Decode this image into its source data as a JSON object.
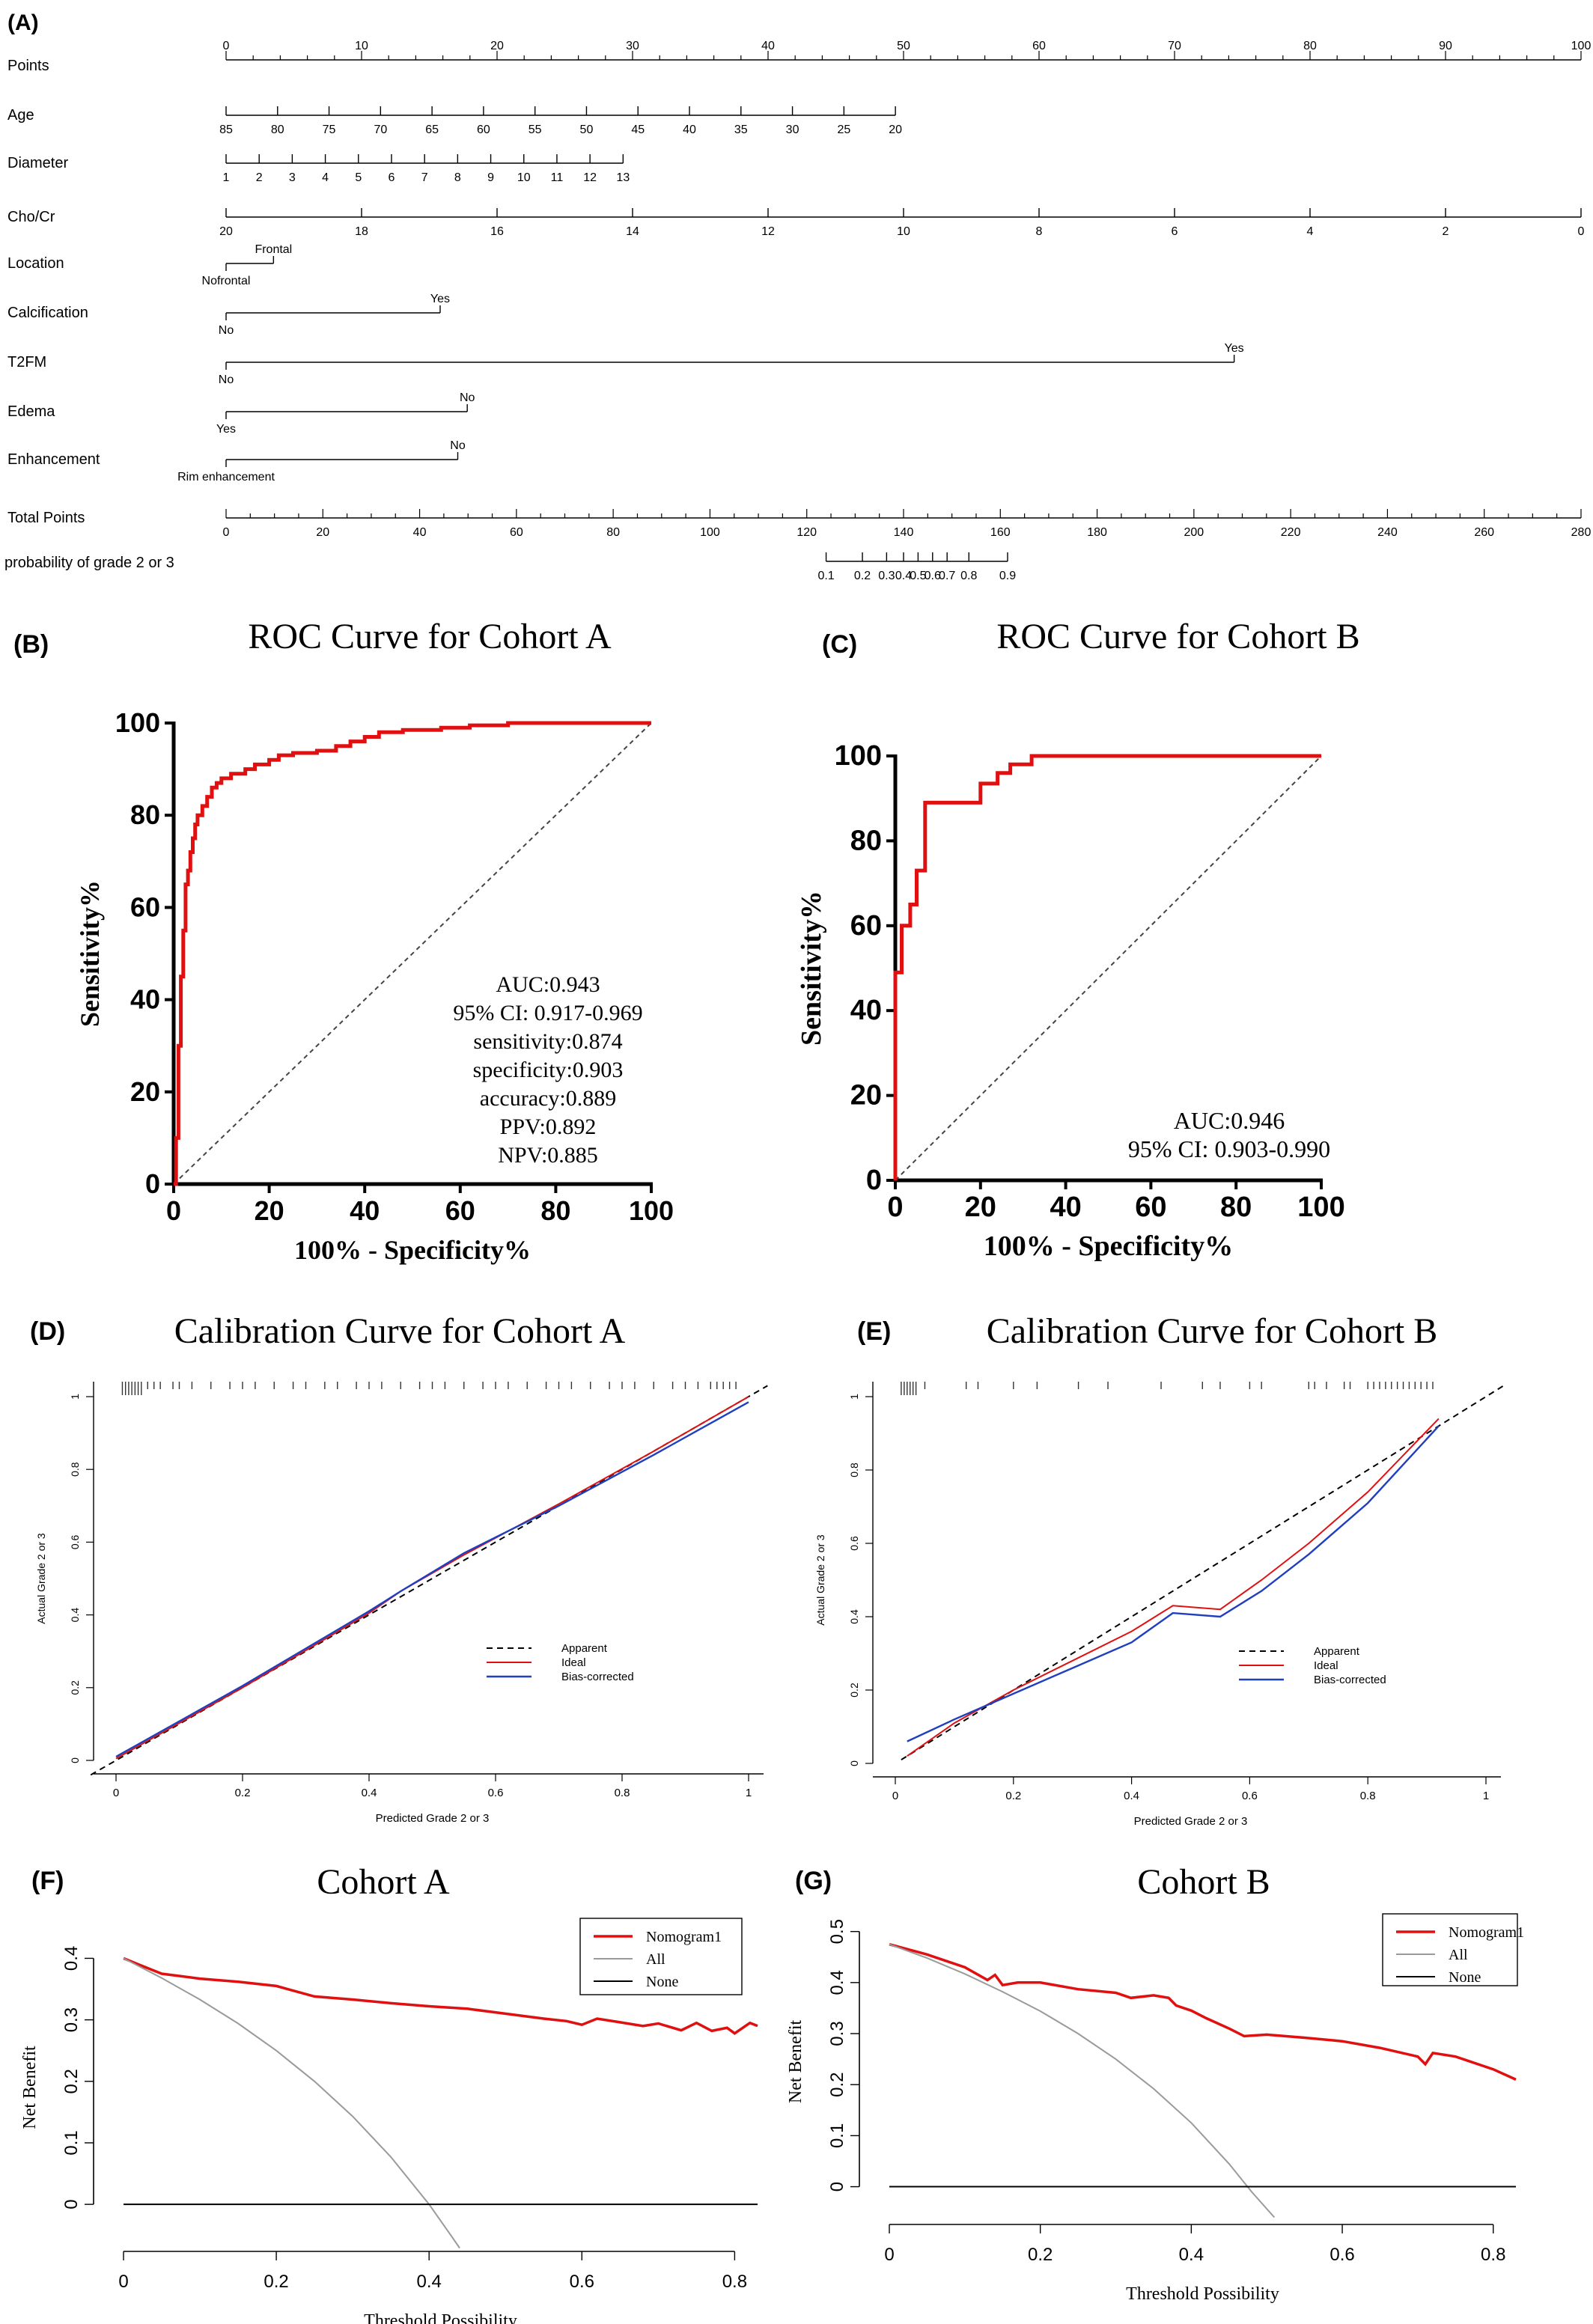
{
  "colors": {
    "model_red": "#e01010",
    "bias_blue": "#1f3fbf",
    "all_gray": "#9a9a9a",
    "axis_black": "#000000"
  },
  "panels": {
    "A": {
      "letter": "(A)",
      "rows": [
        {
          "label": "Points",
          "ticks": [
            "0",
            "10",
            "20",
            "30",
            "40",
            "50",
            "60",
            "70",
            "80",
            "90",
            "100"
          ]
        },
        {
          "label": "Age",
          "ticks": [
            "85",
            "80",
            "75",
            "70",
            "65",
            "60",
            "55",
            "50",
            "45",
            "40",
            "35",
            "30",
            "25",
            "20"
          ]
        },
        {
          "label": "Diameter",
          "ticks": [
            "1",
            "2",
            "3",
            "4",
            "5",
            "6",
            "7",
            "8",
            "9",
            "10",
            "11",
            "12",
            "13"
          ]
        },
        {
          "label": "Cho/Cr",
          "ticks": [
            "20",
            "18",
            "16",
            "14",
            "12",
            "10",
            "8",
            "6",
            "4",
            "2",
            "0"
          ]
        },
        {
          "label": "Location",
          "values": [
            "Nofrontal",
            "Frontal"
          ]
        },
        {
          "label": "Calcification",
          "values": [
            "No",
            "Yes"
          ]
        },
        {
          "label": "T2FM",
          "values": [
            "No",
            "Yes"
          ]
        },
        {
          "label": "Edema",
          "values": [
            "Yes",
            "No"
          ]
        },
        {
          "label": "Enhancement",
          "values": [
            "Rim enhancement",
            "No"
          ]
        },
        {
          "label": "Total Points",
          "ticks": [
            "0",
            "20",
            "40",
            "60",
            "80",
            "100",
            "120",
            "140",
            "160",
            "180",
            "200",
            "220",
            "240",
            "260",
            "280"
          ]
        },
        {
          "label": "probability of grade 2 or 3",
          "ticks": [
            "0.1",
            "0.2",
            "0.3",
            "0.4",
            "0.5",
            "0.6",
            "0.7",
            "0.8",
            "0.9"
          ]
        }
      ]
    },
    "B": {
      "letter": "(B)",
      "title": "ROC Curve for Cohort A",
      "xlabel": "100% - Specificity%",
      "ylabel": "Sensitivity%",
      "stats": [
        "AUC:0.943",
        "95% CI: 0.917-0.969",
        "sensitivity:0.874",
        "specificity:0.903",
        "accuracy:0.889",
        "PPV:0.892",
        "NPV:0.885"
      ]
    },
    "C": {
      "letter": "(C)",
      "title": "ROC Curve for Cohort B",
      "xlabel": "100% - Specificity%",
      "ylabel": "Sensitivity%",
      "stats": [
        "AUC:0.946",
        "95% CI: 0.903-0.990"
      ]
    },
    "D": {
      "letter": "(D)",
      "title": "Calibration Curve for Cohort A",
      "xlabel": "Predicted Grade 2 or 3",
      "ylabel": "Actual Grade 2 or 3",
      "legend": [
        "Apparent",
        "Ideal",
        "Bias-corrected"
      ]
    },
    "E": {
      "letter": "(E)",
      "title": "Calibration Curve for Cohort B",
      "xlabel": "Predicted Grade 2 or 3",
      "ylabel": "Actual Grade 2 or 3",
      "legend": [
        "Apparent",
        "Ideal",
        "Bias-corrected"
      ]
    },
    "F": {
      "letter": "(F)",
      "title": "Cohort A",
      "xlabel": "Threshold Possibility",
      "ylabel": "Net Benefit",
      "legend": [
        "Nomogram1",
        "All",
        "None"
      ]
    },
    "G": {
      "letter": "(G)",
      "title": "Cohort B",
      "xlabel": "Threshold Possibility",
      "ylabel": "Net Benefit",
      "legend": [
        "Nomogram1",
        "All",
        "None"
      ]
    }
  },
  "chart_data": [
    {
      "type": "line",
      "id": "B",
      "title": "ROC Curve for Cohort A",
      "xlabel": "100% - Specificity%",
      "ylabel": "Sensitivity%",
      "xlim": [
        0,
        100
      ],
      "ylim": [
        0,
        100
      ],
      "xticks": [
        0,
        20,
        40,
        60,
        80,
        100
      ],
      "yticks": [
        0,
        20,
        40,
        60,
        80,
        100
      ],
      "series": [
        {
          "style": "roc",
          "x": [
            0,
            0.5,
            0.5,
            1,
            1,
            1.5,
            1.5,
            2,
            2,
            2.5,
            2.5,
            3,
            3,
            3.5,
            3.5,
            4,
            4,
            4.5,
            4.5,
            5,
            5,
            6,
            6,
            7,
            7,
            8,
            8,
            9,
            9,
            10,
            10,
            12,
            12,
            15,
            15,
            17,
            17,
            20,
            20,
            22,
            22,
            25,
            25,
            30,
            30,
            34,
            34,
            37,
            37,
            40,
            40,
            43,
            43,
            48,
            48,
            56,
            56,
            62,
            62,
            70,
            70,
            100
          ],
          "y": [
            0,
            0,
            10,
            10,
            30,
            30,
            45,
            45,
            55,
            55,
            65,
            65,
            68,
            68,
            72,
            72,
            75,
            75,
            78,
            78,
            80,
            80,
            82,
            82,
            84,
            84,
            86,
            86,
            87,
            87,
            88,
            88,
            89,
            89,
            90,
            90,
            91,
            91,
            92,
            92,
            93,
            93,
            93.5,
            93.5,
            94,
            94,
            95,
            95,
            96,
            96,
            97,
            97,
            98,
            98,
            98.5,
            98.5,
            99,
            99,
            99.5,
            99.5,
            100,
            100
          ]
        },
        {
          "style": "diagonal",
          "x": [
            0,
            100
          ],
          "y": [
            0,
            100
          ]
        }
      ]
    },
    {
      "type": "line",
      "id": "C",
      "title": "ROC Curve for Cohort B",
      "xlabel": "100% - Specificity%",
      "ylabel": "Sensitivity%",
      "xlim": [
        0,
        100
      ],
      "ylim": [
        0,
        100
      ],
      "xticks": [
        0,
        20,
        40,
        60,
        80,
        100
      ],
      "yticks": [
        0,
        20,
        40,
        60,
        80,
        100
      ],
      "series": [
        {
          "style": "roc",
          "x": [
            0,
            0,
            1.5,
            1.5,
            3.5,
            3.5,
            5,
            5,
            7,
            7,
            10,
            10,
            20,
            20,
            24,
            24,
            27,
            27,
            32,
            32,
            100
          ],
          "y": [
            0,
            49,
            49,
            60,
            60,
            65,
            65,
            73,
            73,
            89,
            89,
            89,
            89,
            93.5,
            93.5,
            96,
            96,
            98,
            98,
            100,
            100
          ]
        },
        {
          "style": "diagonal",
          "x": [
            0,
            100
          ],
          "y": [
            0,
            100
          ]
        }
      ]
    },
    {
      "type": "line",
      "id": "D",
      "title": "Calibration Curve for Cohort A",
      "xlabel": "Predicted Grade 2 or 3",
      "ylabel": "Actual Grade 2 or 3",
      "xlim": [
        0,
        1
      ],
      "ylim": [
        0,
        1
      ],
      "xticks": [
        0,
        0.2,
        0.4,
        0.6,
        0.8,
        1.0
      ],
      "yticks": [
        0,
        0.2,
        0.4,
        0.6,
        0.8,
        1.0
      ],
      "series": [
        {
          "name": "Apparent",
          "style": "dashed",
          "x": [
            -0.04,
            1.03
          ],
          "y": [
            -0.04,
            1.03
          ]
        },
        {
          "name": "Ideal",
          "style": "red",
          "x": [
            0,
            0.2,
            0.4,
            0.45,
            0.55,
            0.7,
            0.85,
            1.0
          ],
          "y": [
            0.005,
            0.2,
            0.405,
            0.465,
            0.565,
            0.705,
            0.85,
            1.0
          ]
        },
        {
          "name": "Bias-corrected",
          "style": "blue",
          "x": [
            0,
            0.2,
            0.4,
            0.45,
            0.55,
            0.7,
            0.85,
            1.0
          ],
          "y": [
            0.01,
            0.205,
            0.41,
            0.465,
            0.57,
            0.7,
            0.84,
            0.985
          ]
        }
      ],
      "rug": [
        0.01,
        0.015,
        0.02,
        0.025,
        0.03,
        0.035,
        0.04,
        0.05,
        0.06,
        0.07,
        0.09,
        0.1,
        0.12,
        0.15,
        0.18,
        0.2,
        0.22,
        0.25,
        0.28,
        0.3,
        0.33,
        0.35,
        0.38,
        0.4,
        0.42,
        0.45,
        0.48,
        0.5,
        0.52,
        0.55,
        0.58,
        0.6,
        0.62,
        0.65,
        0.68,
        0.7,
        0.72,
        0.75,
        0.78,
        0.8,
        0.82,
        0.85,
        0.88,
        0.9,
        0.92,
        0.94,
        0.95,
        0.96,
        0.97,
        0.98
      ]
    },
    {
      "type": "line",
      "id": "E",
      "title": "Calibration Curve for Cohort B",
      "xlabel": "Predicted Grade 2 or 3",
      "ylabel": "Actual Grade 2 or 3",
      "xlim": [
        0,
        1
      ],
      "ylim": [
        0,
        1
      ],
      "xticks": [
        0,
        0.2,
        0.4,
        0.6,
        0.8,
        1.0
      ],
      "yticks": [
        0,
        0.2,
        0.4,
        0.6,
        0.8,
        1.0
      ],
      "series": [
        {
          "name": "Apparent",
          "style": "dashed",
          "x": [
            0.01,
            1.03
          ],
          "y": [
            0.01,
            1.03
          ]
        },
        {
          "name": "Ideal",
          "style": "red",
          "x": [
            0.02,
            0.1,
            0.2,
            0.3,
            0.4,
            0.47,
            0.55,
            0.62,
            0.7,
            0.8,
            0.92
          ],
          "y": [
            0.02,
            0.11,
            0.2,
            0.28,
            0.36,
            0.43,
            0.42,
            0.5,
            0.6,
            0.74,
            0.94
          ]
        },
        {
          "name": "Bias-corrected",
          "style": "blue",
          "x": [
            0.02,
            0.1,
            0.2,
            0.3,
            0.4,
            0.47,
            0.55,
            0.62,
            0.7,
            0.8,
            0.92
          ],
          "y": [
            0.06,
            0.12,
            0.19,
            0.26,
            0.33,
            0.41,
            0.4,
            0.47,
            0.57,
            0.71,
            0.92
          ]
        }
      ],
      "rug": [
        0.01,
        0.015,
        0.02,
        0.025,
        0.03,
        0.035,
        0.05,
        0.12,
        0.14,
        0.2,
        0.24,
        0.31,
        0.36,
        0.45,
        0.52,
        0.55,
        0.6,
        0.62,
        0.7,
        0.71,
        0.73,
        0.76,
        0.77,
        0.8,
        0.81,
        0.82,
        0.83,
        0.84,
        0.85,
        0.86,
        0.87,
        0.88,
        0.89,
        0.9,
        0.91
      ]
    },
    {
      "type": "line",
      "id": "F",
      "title": "Cohort A",
      "xlabel": "Threshold Possibility",
      "ylabel": "Net Benefit",
      "xlim": [
        0,
        0.83
      ],
      "ylim": [
        -0.04,
        0.42
      ],
      "xticks": [
        0,
        0.2,
        0.4,
        0.6,
        0.8
      ],
      "yticks": [
        0,
        0.1,
        0.2,
        0.3,
        0.4
      ],
      "series": [
        {
          "name": "Nomogram1",
          "style": "red",
          "x": [
            0,
            0.02,
            0.05,
            0.1,
            0.15,
            0.2,
            0.25,
            0.3,
            0.35,
            0.4,
            0.45,
            0.5,
            0.55,
            0.58,
            0.6,
            0.62,
            0.65,
            0.68,
            0.7,
            0.73,
            0.75,
            0.77,
            0.79,
            0.8,
            0.82,
            0.83
          ],
          "y": [
            0.4,
            0.39,
            0.375,
            0.367,
            0.362,
            0.355,
            0.338,
            0.333,
            0.327,
            0.322,
            0.318,
            0.31,
            0.302,
            0.298,
            0.292,
            0.302,
            0.296,
            0.29,
            0.294,
            0.283,
            0.295,
            0.282,
            0.287,
            0.278,
            0.295,
            0.29
          ]
        },
        {
          "name": "All",
          "style": "gray",
          "x": [
            0,
            0.05,
            0.1,
            0.15,
            0.2,
            0.25,
            0.3,
            0.35,
            0.4,
            0.43,
            0.44
          ],
          "y": [
            0.4,
            0.368,
            0.333,
            0.294,
            0.25,
            0.2,
            0.143,
            0.077,
            0.0,
            -0.053,
            -0.071
          ]
        },
        {
          "name": "None",
          "style": "black",
          "x": [
            0,
            0.83
          ],
          "y": [
            0,
            0
          ]
        }
      ]
    },
    {
      "type": "line",
      "id": "G",
      "title": "Cohort B",
      "xlabel": "Threshold Possibility",
      "ylabel": "Net Benefit",
      "xlim": [
        0,
        0.83
      ],
      "ylim": [
        -0.03,
        0.52
      ],
      "xticks": [
        0,
        0.2,
        0.4,
        0.6,
        0.8
      ],
      "yticks": [
        0,
        0.1,
        0.2,
        0.3,
        0.4,
        0.5
      ],
      "series": [
        {
          "name": "Nomogram1",
          "style": "red",
          "x": [
            0,
            0.05,
            0.1,
            0.13,
            0.14,
            0.15,
            0.17,
            0.2,
            0.25,
            0.3,
            0.32,
            0.35,
            0.37,
            0.38,
            0.4,
            0.42,
            0.45,
            0.47,
            0.5,
            0.55,
            0.6,
            0.65,
            0.7,
            0.71,
            0.72,
            0.75,
            0.8,
            0.83
          ],
          "y": [
            0.475,
            0.455,
            0.43,
            0.405,
            0.415,
            0.395,
            0.4,
            0.4,
            0.387,
            0.38,
            0.37,
            0.375,
            0.37,
            0.355,
            0.345,
            0.33,
            0.31,
            0.295,
            0.298,
            0.292,
            0.285,
            0.272,
            0.255,
            0.24,
            0.262,
            0.255,
            0.23,
            0.21
          ]
        },
        {
          "name": "All",
          "style": "gray",
          "x": [
            0,
            0.05,
            0.1,
            0.15,
            0.2,
            0.25,
            0.3,
            0.35,
            0.4,
            0.45,
            0.48,
            0.51
          ],
          "y": [
            0.475,
            0.448,
            0.417,
            0.382,
            0.344,
            0.3,
            0.25,
            0.192,
            0.125,
            0.045,
            -0.01,
            -0.06
          ]
        },
        {
          "name": "None",
          "style": "black",
          "x": [
            0,
            0.83
          ],
          "y": [
            0,
            0
          ]
        }
      ]
    }
  ]
}
